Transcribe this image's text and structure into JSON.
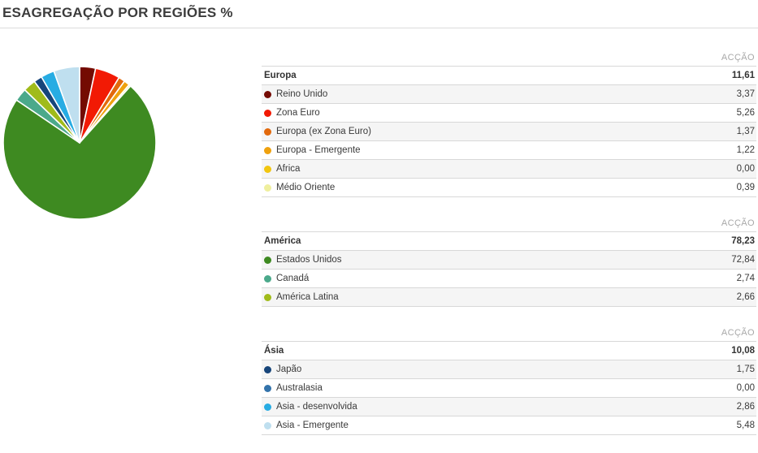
{
  "title": "ESAGREGAÇÃO POR REGIÕES %",
  "column_header": "ACÇÃO",
  "sections": [
    {
      "name": "Europa",
      "total": "11,61",
      "rows": [
        {
          "label": "Reino Unido",
          "value": "3,37",
          "color": "#740B02"
        },
        {
          "label": "Zona Euro",
          "value": "5,26",
          "color": "#F21A04"
        },
        {
          "label": "Europa (ex Zona Euro)",
          "value": "1,37",
          "color": "#E2690C"
        },
        {
          "label": "Europa - Emergente",
          "value": "1,22",
          "color": "#EFA10E"
        },
        {
          "label": "África",
          "value": "0,00",
          "color": "#F2C60F"
        },
        {
          "label": "Médio Oriente",
          "value": "0,39",
          "color": "#EFEF9E"
        }
      ]
    },
    {
      "name": "América",
      "total": "78,23",
      "rows": [
        {
          "label": "Estados Unidos",
          "value": "72,84",
          "color": "#3E8A21"
        },
        {
          "label": "Canadá",
          "value": "2,74",
          "color": "#4BA98B"
        },
        {
          "label": "América Latina",
          "value": "2,66",
          "color": "#A0BB1A"
        }
      ]
    },
    {
      "name": "Ásia",
      "total": "10,08",
      "rows": [
        {
          "label": "Japão",
          "value": "1,75",
          "color": "#17457A"
        },
        {
          "label": "Australasia",
          "value": "0,00",
          "color": "#3373AB"
        },
        {
          "label": "Ásia - desenvolvida",
          "value": "2,86",
          "color": "#27ACE3"
        },
        {
          "label": "Ásia - Emergente",
          "value": "5,48",
          "color": "#BFDFEF"
        }
      ]
    }
  ],
  "chart_data": {
    "type": "pie",
    "title": "ESAGREGAÇÃO POR REGIÕES %",
    "unit": "%",
    "start_angle_deg": -90,
    "direction": "clockwise",
    "slices": [
      {
        "label": "Reino Unido",
        "value": 3.37,
        "color": "#740B02"
      },
      {
        "label": "Zona Euro",
        "value": 5.26,
        "color": "#F21A04"
      },
      {
        "label": "Europa (ex Zona Euro)",
        "value": 1.37,
        "color": "#E2690C"
      },
      {
        "label": "Europa - Emergente",
        "value": 1.22,
        "color": "#EFA10E"
      },
      {
        "label": "África",
        "value": 0.0,
        "color": "#F2C60F"
      },
      {
        "label": "Médio Oriente",
        "value": 0.39,
        "color": "#EFEF9E"
      },
      {
        "label": "Estados Unidos",
        "value": 72.84,
        "color": "#3E8A21"
      },
      {
        "label": "Canadá",
        "value": 2.74,
        "color": "#4BA98B"
      },
      {
        "label": "América Latina",
        "value": 2.66,
        "color": "#A0BB1A"
      },
      {
        "label": "Japão",
        "value": 1.75,
        "color": "#17457A"
      },
      {
        "label": "Australasia",
        "value": 0.0,
        "color": "#3373AB"
      },
      {
        "label": "Ásia - desenvolvida",
        "value": 2.86,
        "color": "#27ACE3"
      },
      {
        "label": "Ásia - Emergente",
        "value": 5.48,
        "color": "#BFDFEF"
      }
    ]
  }
}
